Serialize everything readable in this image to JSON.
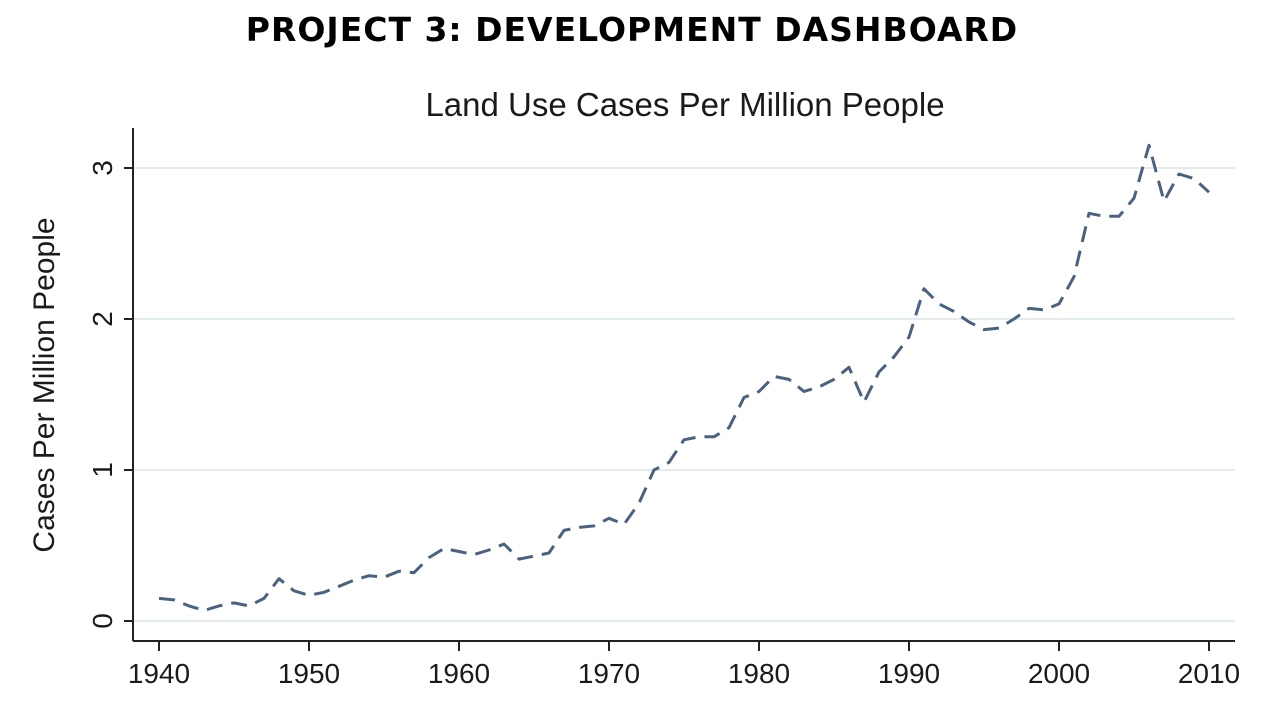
{
  "header": {
    "title": "PROJECT 3: DEVELOPMENT DASHBOARD"
  },
  "chart_data": {
    "type": "line",
    "title": "Land Use Cases Per Million People",
    "xlabel": "",
    "ylabel": "Cases Per Million People",
    "xlim": [
      1940,
      2010
    ],
    "ylim": [
      0,
      3.3
    ],
    "xticks": [
      1940,
      1950,
      1960,
      1970,
      1980,
      1990,
      2000,
      2010
    ],
    "yticks": [
      0,
      1,
      2,
      3
    ],
    "grid": true,
    "line_style": "dashed",
    "line_color": "#4a6280",
    "x": [
      1940,
      1941,
      1942,
      1943,
      1944,
      1945,
      1946,
      1947,
      1948,
      1949,
      1950,
      1951,
      1952,
      1953,
      1954,
      1955,
      1956,
      1957,
      1958,
      1959,
      1960,
      1961,
      1962,
      1963,
      1964,
      1965,
      1966,
      1967,
      1968,
      1969,
      1970,
      1971,
      1972,
      1973,
      1974,
      1975,
      1976,
      1977,
      1978,
      1979,
      1980,
      1981,
      1982,
      1983,
      1984,
      1985,
      1986,
      1987,
      1988,
      1989,
      1990,
      1991,
      1992,
      1993,
      1994,
      1995,
      1996,
      1997,
      1998,
      1999,
      2000,
      2001,
      2002,
      2003,
      2004,
      2005,
      2006,
      2007,
      2008,
      2009,
      2010
    ],
    "series": [
      {
        "values": [
          0.15,
          0.14,
          0.1,
          0.07,
          0.1,
          0.12,
          0.1,
          0.15,
          0.28,
          0.2,
          0.17,
          0.19,
          0.23,
          0.27,
          0.3,
          0.29,
          0.33,
          0.32,
          0.42,
          0.48,
          0.46,
          0.44,
          0.47,
          0.51,
          0.41,
          0.43,
          0.45,
          0.6,
          0.62,
          0.63,
          0.68,
          0.64,
          0.78,
          1.0,
          1.05,
          1.2,
          1.22,
          1.22,
          1.28,
          1.48,
          1.52,
          1.62,
          1.6,
          1.52,
          1.55,
          1.6,
          1.68,
          1.45,
          1.65,
          1.75,
          1.88,
          2.2,
          2.1,
          2.05,
          1.98,
          1.93,
          1.94,
          2.0,
          2.07,
          2.06,
          2.1,
          2.28,
          2.7,
          2.68,
          2.68,
          2.8,
          3.15,
          2.78,
          2.96,
          2.93,
          2.84
        ]
      }
    ]
  }
}
